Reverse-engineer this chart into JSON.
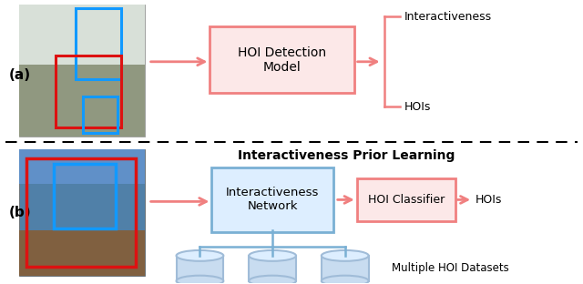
{
  "fig_width": 6.4,
  "fig_height": 3.12,
  "dpi": 100,
  "bg_color": "#ffffff",
  "pink_box_color": "#f08080",
  "pink_box_fill": "#fce8e8",
  "blue_box_color": "#7ab0d4",
  "blue_box_fill": "#ddeeff",
  "arrow_color": "#f08080",
  "label_a": "(a)",
  "label_b": "(b)",
  "top_box_text": "HOI Detection\nModel",
  "bottom_left_box_text": "Interactiveness\nNetwork",
  "bottom_right_box_text": "HOI Classifier",
  "bottom_title": "Interactiveness Prior Learning",
  "interactiveness_label": "Interactiveness",
  "hois_label_top": "HOIs",
  "hois_label_bottom": "HOIs",
  "datasets_label": "Multiple HOI Datasets",
  "cylinder_color": "#a0bcd8",
  "cylinder_fill": "#c8dcf0",
  "cylinder_top_fill": "#ddeeff",
  "red_box": "#dd1111",
  "blue_box": "#1199ff",
  "img_bg_top": "#d8d8d0",
  "img_bg_bot": "#6090c0"
}
